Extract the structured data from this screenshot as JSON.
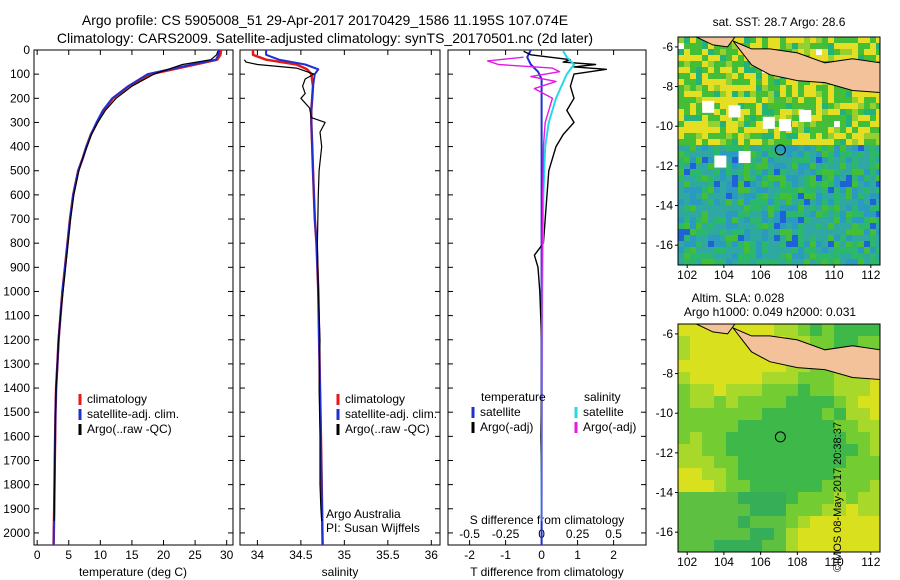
{
  "header": {
    "line1": "Argo profile: CS 5905008_51 29-Apr-2017 20170429_1586 11.195S 107.074E",
    "line2": "Climatology: CARS2009. Satellite-adjusted climatology: synTS_20170501.nc (2d later)"
  },
  "side_text": "©IMOS 08-May-2017 20:38:37",
  "colors": {
    "climatology": "#e31a1c",
    "satellite": "#1f2fd0",
    "argo": "#000000",
    "sal_sat": "#27d9e8",
    "sal_argo": "#e21ae6",
    "land": "#f4c29a"
  },
  "depth_ticks": [
    0,
    100,
    200,
    300,
    400,
    500,
    600,
    700,
    800,
    900,
    1000,
    1100,
    1200,
    1300,
    1400,
    1500,
    1600,
    1700,
    1800,
    1900,
    2000
  ],
  "chart_data": [
    {
      "type": "line",
      "xlabel": "temperature (deg C)",
      "xlim": [
        -0.5,
        31
      ],
      "ylim": [
        0,
        2050
      ],
      "xticks": [
        0,
        5,
        10,
        15,
        20,
        25,
        30
      ],
      "legend": [
        "climatology",
        "satellite-adj. clim.",
        "Argo(..raw -QC)"
      ],
      "series": [
        {
          "name": "climatology",
          "x": [
            29.1,
            29.0,
            28.5,
            25.0,
            18.0,
            14.5,
            12.0,
            10.5,
            9.5,
            8.5,
            7.8,
            7.2,
            6.5,
            5.7,
            5.2,
            4.8,
            4.4,
            4.0,
            3.7,
            3.4,
            3.2,
            3.0,
            2.9,
            2.8,
            2.7,
            2.6
          ],
          "y": [
            0,
            20,
            40,
            60,
            100,
            150,
            200,
            250,
            300,
            350,
            400,
            450,
            500,
            600,
            700,
            800,
            900,
            1000,
            1100,
            1200,
            1300,
            1400,
            1500,
            1700,
            1900,
            2050
          ]
        },
        {
          "name": "satellite-adj. clim.",
          "x": [
            28.8,
            28.7,
            28.3,
            24.5,
            17.5,
            14.4,
            11.9,
            10.4,
            9.4,
            8.5,
            7.8,
            7.2,
            6.5,
            5.7,
            5.2,
            4.8,
            4.4,
            4.0,
            3.7,
            3.4,
            3.2,
            3.0,
            2.9,
            2.8,
            2.7,
            2.6
          ],
          "y": [
            0,
            20,
            40,
            60,
            100,
            150,
            200,
            250,
            300,
            350,
            400,
            450,
            500,
            600,
            700,
            800,
            900,
            1000,
            1100,
            1200,
            1300,
            1400,
            1500,
            1700,
            1900,
            2050
          ]
        },
        {
          "name": "Argo(..raw -QC)",
          "x": [
            28.6,
            28.4,
            27.5,
            23.0,
            18.5,
            15.0,
            12.5,
            10.8,
            9.6,
            8.6,
            7.9,
            7.2,
            6.6,
            5.8,
            5.3,
            4.9,
            4.5,
            4.1,
            3.7,
            3.4,
            3.2,
            3.0,
            2.9,
            2.8,
            2.7
          ],
          "y": [
            5,
            20,
            40,
            60,
            100,
            150,
            200,
            250,
            300,
            350,
            400,
            450,
            500,
            600,
            700,
            800,
            900,
            1000,
            1100,
            1200,
            1300,
            1400,
            1500,
            1700,
            1950
          ]
        }
      ]
    },
    {
      "type": "line",
      "xlabel": "salinity",
      "xlim": [
        33.8,
        36.1
      ],
      "ylim": [
        0,
        2050
      ],
      "xticks": [
        34,
        34.5,
        35,
        35.5,
        36
      ],
      "legend": [
        "climatology",
        "satellite-adj. clim.",
        "Argo(..raw -QC)"
      ],
      "annotation": [
        "Argo Australia",
        "PI: Susan Wijffels"
      ],
      "series": [
        {
          "name": "climatology",
          "x": [
            33.95,
            33.95,
            34.1,
            34.45,
            34.57,
            34.62,
            34.64,
            34.63,
            34.62,
            34.62,
            34.63,
            34.64,
            34.65,
            34.66,
            34.68,
            34.69,
            34.7,
            34.71,
            34.72,
            34.73,
            34.74,
            34.75
          ],
          "y": [
            0,
            20,
            40,
            60,
            80,
            100,
            150,
            200,
            250,
            300,
            400,
            500,
            600,
            700,
            800,
            900,
            1000,
            1200,
            1400,
            1600,
            1800,
            2050
          ]
        },
        {
          "name": "satellite-adj. clim.",
          "x": [
            34.1,
            34.1,
            34.25,
            34.55,
            34.7,
            34.66,
            34.64,
            34.63,
            34.62,
            34.62,
            34.63,
            34.64,
            34.65,
            34.66,
            34.68,
            34.69,
            34.7,
            34.71,
            34.72,
            34.73,
            34.74,
            34.75
          ],
          "y": [
            0,
            20,
            40,
            60,
            80,
            100,
            150,
            200,
            250,
            300,
            400,
            500,
            600,
            700,
            800,
            900,
            1000,
            1200,
            1400,
            1600,
            1800,
            2050
          ]
        },
        {
          "name": "Argo(..raw -QC)",
          "x": [
            33.85,
            33.87,
            34.0,
            34.45,
            34.65,
            34.55,
            34.52,
            34.55,
            34.5,
            34.6,
            34.62,
            34.78,
            34.72,
            34.74,
            34.71,
            34.7,
            34.69,
            34.7,
            34.72,
            34.71,
            34.72,
            34.72,
            34.73,
            34.74
          ],
          "y": [
            40,
            50,
            60,
            75,
            100,
            120,
            150,
            180,
            200,
            240,
            280,
            300,
            340,
            400,
            500,
            600,
            800,
            1000,
            1200,
            1400,
            1600,
            1800,
            1900,
            1950
          ]
        }
      ]
    },
    {
      "type": "line",
      "xlabel": "T difference from climatology",
      "xlabel_top": "S difference from climatology",
      "xlim": [
        -2.6,
        2.9
      ],
      "ylim": [
        0,
        2050
      ],
      "xticks": [
        -2,
        -1,
        0,
        1,
        2
      ],
      "xticks_s_labels": [
        "-0.5",
        "-0.25",
        "0",
        "0.25",
        "0.5"
      ],
      "xticks_s_pos": [
        -2,
        -1,
        0,
        1,
        2
      ],
      "legend_titles": [
        "temperature",
        "salinity"
      ],
      "legend": [
        "satellite",
        "Argo(-adj)",
        "satellite",
        "Argo(-adj)"
      ],
      "series": [
        {
          "name": "temperature satellite",
          "x": [
            -0.3,
            -0.4,
            -0.3,
            -0.1,
            0,
            0,
            0,
            0,
            0,
            0,
            0,
            0,
            0,
            0,
            0,
            0
          ],
          "y": [
            0,
            30,
            60,
            90,
            120,
            150,
            200,
            300,
            400,
            600,
            800,
            1000,
            1200,
            1500,
            1800,
            2050
          ]
        },
        {
          "name": "temperature Argo(-adj)",
          "x": [
            -0.5,
            -0.3,
            0.8,
            0.6,
            1.5,
            0.9,
            1.8,
            0.9,
            0.8,
            0.9,
            0.7,
            0.9,
            0.6,
            0.4,
            0.2,
            0.15,
            0.1,
            0.05,
            -0.2,
            -0.1,
            -0.05,
            0,
            0,
            -0.02,
            0,
            0
          ],
          "y": [
            5,
            20,
            40,
            50,
            60,
            70,
            80,
            100,
            150,
            200,
            250,
            300,
            350,
            400,
            500,
            600,
            700,
            800,
            850,
            900,
            1000,
            1200,
            1400,
            1600,
            1800,
            1950
          ]
        },
        {
          "name": "salinity satellite",
          "x": [
            0.6,
            0.7,
            0.9,
            0.7,
            0.4,
            0.2,
            0.1,
            0.05,
            0.03,
            0.02,
            0.01,
            0
          ],
          "y": [
            5,
            30,
            60,
            100,
            200,
            300,
            400,
            600,
            800,
            1000,
            1400,
            1950
          ]
        },
        {
          "name": "salinity Argo(-adj)",
          "x": [
            -0.5,
            -1.5,
            -1.2,
            0.3,
            0.5,
            -0.3,
            0.4,
            -0.2,
            0.3,
            0.1,
            0.05,
            0.03,
            0.02,
            0.01,
            0
          ],
          "y": [
            30,
            45,
            60,
            75,
            90,
            110,
            130,
            160,
            200,
            300,
            400,
            600,
            800,
            1000,
            1950
          ]
        }
      ]
    }
  ],
  "maps": {
    "top": {
      "title": "sat. SST: 28.7  Argo: 28.6",
      "xticks": [
        102,
        104,
        106,
        108,
        110,
        112
      ],
      "yticks": [
        -6,
        -8,
        -10,
        -12,
        -14,
        -16
      ],
      "xlim": [
        101.5,
        112.5
      ],
      "ylim": [
        -17,
        -5.5
      ],
      "float_lon": 107.074,
      "float_lat": -11.195
    },
    "bottom": {
      "title1": "Altim. SLA: 0.028",
      "title2": "Argo h1000: 0.049 h2000: 0.031",
      "xticks": [
        102,
        104,
        106,
        108,
        110,
        112
      ],
      "yticks": [
        -6,
        -8,
        -10,
        -12,
        -14,
        -16
      ],
      "xlim": [
        101.5,
        112.5
      ],
      "ylim": [
        -17,
        -5.5
      ],
      "float_lon": 107.074,
      "float_lat": -11.195
    }
  }
}
